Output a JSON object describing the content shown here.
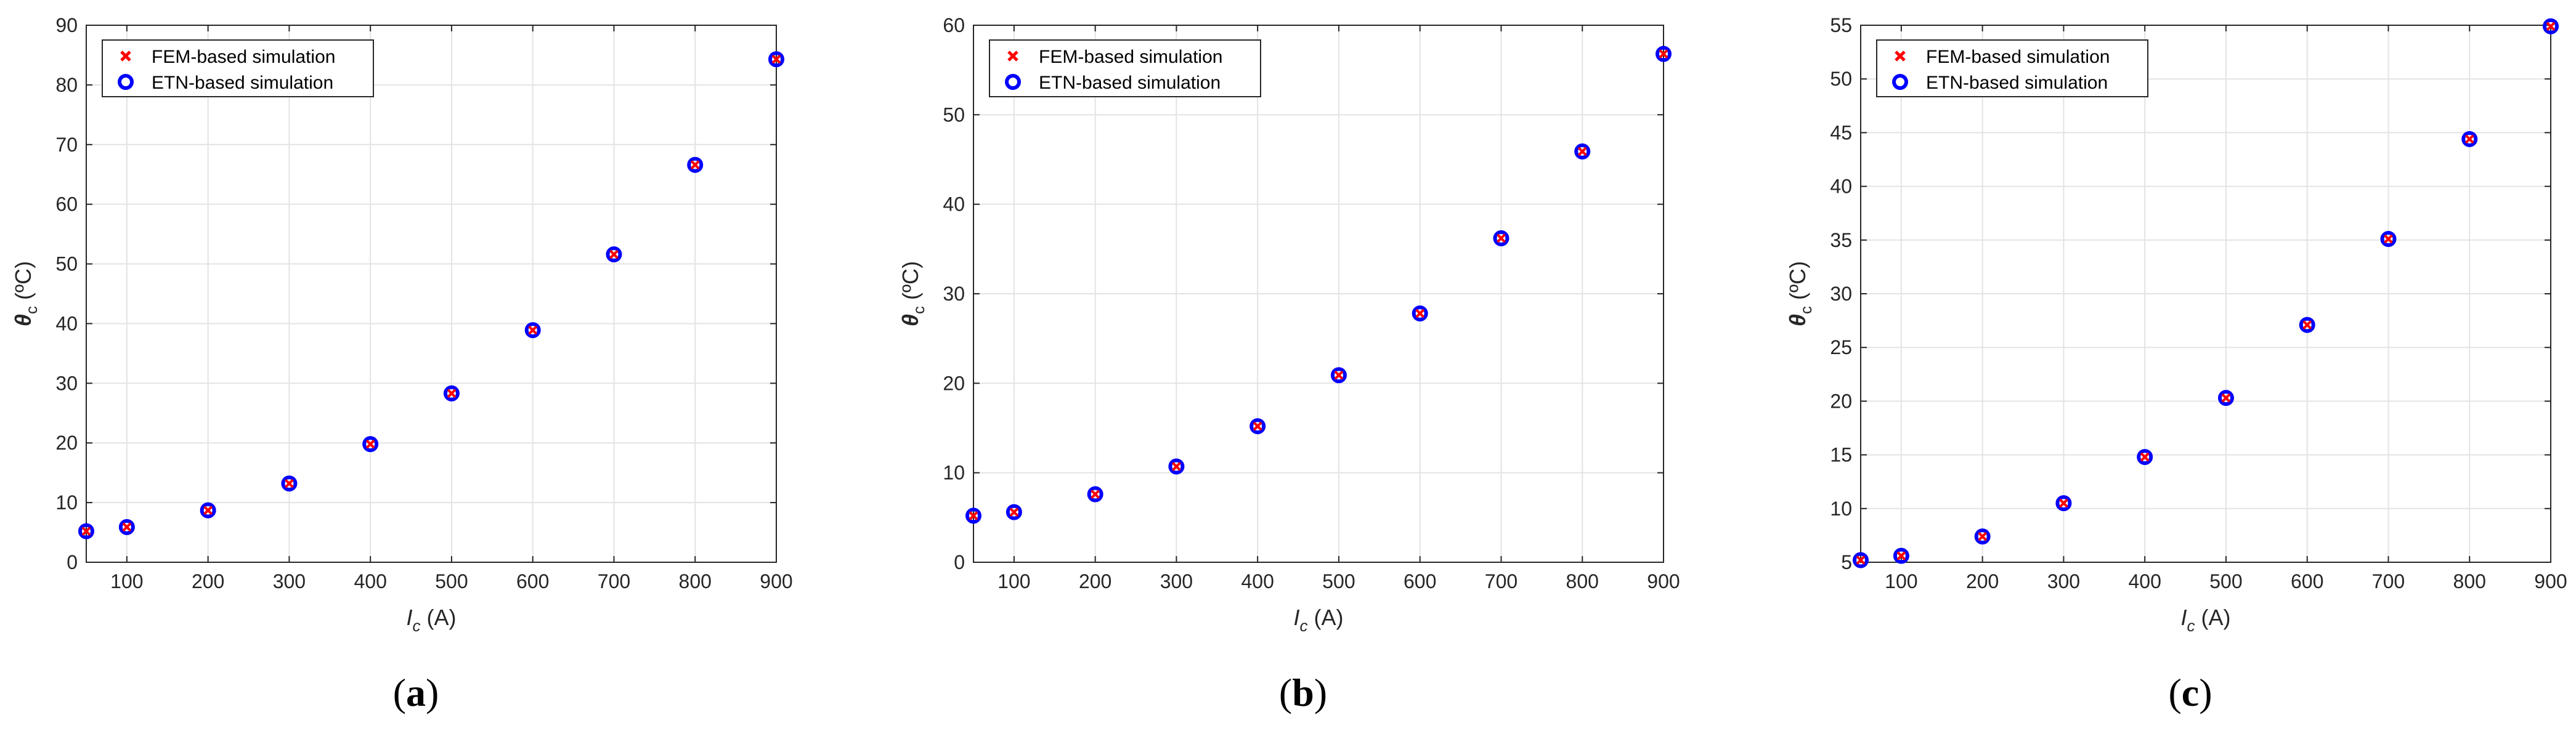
{
  "colors": {
    "fem_marker": "#ff0000",
    "etn_marker": "#0000ff",
    "grid": "#e3e3e3",
    "axis": "#262626"
  },
  "chart_data": [
    {
      "type": "scatter",
      "panel_label": "a",
      "xlabel": {
        "symbol": "I",
        "subscript": "c",
        "unit": "(A)"
      },
      "ylabel": {
        "symbol": "θ",
        "subscript": "c",
        "unit": "(ºC)"
      },
      "xlim": [
        50,
        900
      ],
      "ylim": [
        0,
        90
      ],
      "xticks": [
        100,
        200,
        300,
        400,
        500,
        600,
        700,
        800,
        900
      ],
      "yticks": [
        0,
        10,
        20,
        30,
        40,
        50,
        60,
        70,
        80,
        90
      ],
      "grid": true,
      "legend_position": "top-left",
      "x": [
        50,
        100,
        200,
        300,
        400,
        500,
        600,
        700,
        800,
        900
      ],
      "series": [
        {
          "name": "FEM-based simulation",
          "marker": "x",
          "values": [
            5.2,
            5.9,
            8.7,
            13.2,
            19.8,
            28.3,
            38.9,
            51.6,
            66.6,
            84.3
          ]
        },
        {
          "name": "ETN-based simulation",
          "marker": "o",
          "values": [
            5.2,
            5.9,
            8.7,
            13.2,
            19.8,
            28.3,
            38.9,
            51.6,
            66.6,
            84.3
          ]
        }
      ]
    },
    {
      "type": "scatter",
      "panel_label": "b",
      "xlabel": {
        "symbol": "I",
        "subscript": "c",
        "unit": "(A)"
      },
      "ylabel": {
        "symbol": "θ",
        "subscript": "c",
        "unit": "(ºC)"
      },
      "xlim": [
        50,
        900
      ],
      "ylim": [
        0,
        60
      ],
      "xticks": [
        100,
        200,
        300,
        400,
        500,
        600,
        700,
        800,
        900
      ],
      "yticks": [
        0,
        10,
        20,
        30,
        40,
        50,
        60
      ],
      "grid": true,
      "legend_position": "top-left",
      "x": [
        50,
        100,
        200,
        300,
        400,
        500,
        600,
        700,
        800,
        900
      ],
      "series": [
        {
          "name": "FEM-based simulation",
          "marker": "x",
          "values": [
            5.2,
            5.6,
            7.6,
            10.7,
            15.2,
            20.9,
            27.8,
            36.2,
            45.9,
            56.8
          ]
        },
        {
          "name": "ETN-based simulation",
          "marker": "o",
          "values": [
            5.2,
            5.6,
            7.6,
            10.7,
            15.2,
            20.9,
            27.8,
            36.2,
            45.9,
            56.8
          ]
        }
      ]
    },
    {
      "type": "scatter",
      "panel_label": "c",
      "xlabel": {
        "symbol": "I",
        "subscript": "c",
        "unit": "(A)"
      },
      "ylabel": {
        "symbol": "θ",
        "subscript": "c",
        "unit": "(ºC)"
      },
      "xlim": [
        50,
        900
      ],
      "ylim": [
        5,
        55
      ],
      "xticks": [
        100,
        200,
        300,
        400,
        500,
        600,
        700,
        800,
        900
      ],
      "yticks": [
        5,
        10,
        15,
        20,
        25,
        30,
        35,
        40,
        45,
        50,
        55
      ],
      "grid": true,
      "legend_position": "top-left",
      "x": [
        50,
        100,
        200,
        300,
        400,
        500,
        600,
        700,
        800,
        900
      ],
      "series": [
        {
          "name": "FEM-based simulation",
          "marker": "x",
          "values": [
            5.2,
            5.6,
            7.4,
            10.5,
            14.8,
            20.3,
            27.1,
            35.1,
            44.4,
            54.9
          ]
        },
        {
          "name": "ETN-based simulation",
          "marker": "o",
          "values": [
            5.2,
            5.6,
            7.4,
            10.5,
            14.8,
            20.3,
            27.1,
            35.1,
            44.4,
            54.9
          ]
        }
      ]
    }
  ]
}
